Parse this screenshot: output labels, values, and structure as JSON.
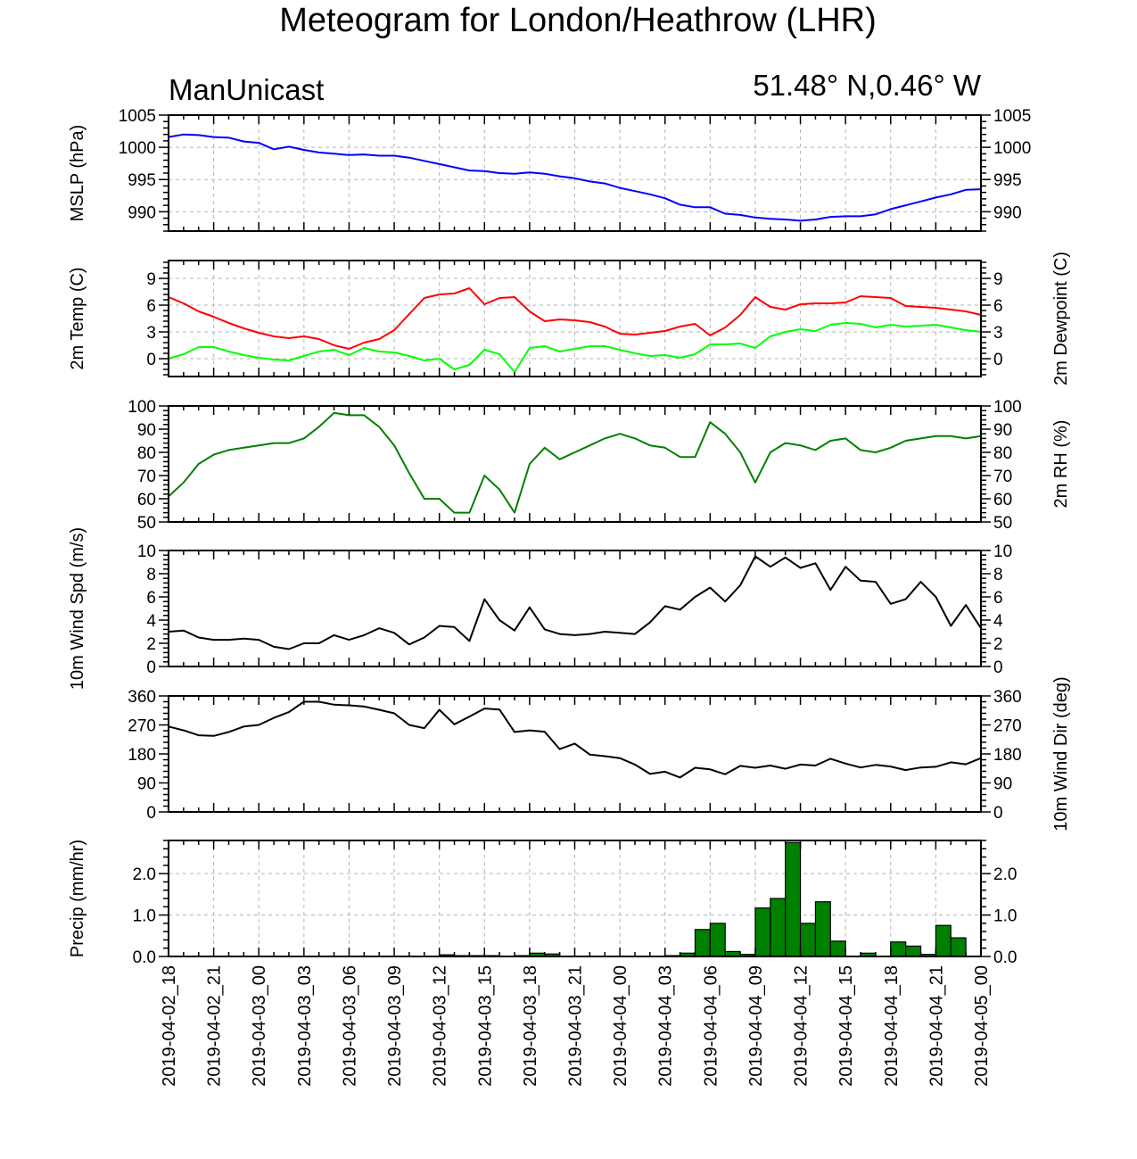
{
  "title": "Meteogram for London/Heathrow (LHR)",
  "subtitle_left": "ManUnicast",
  "subtitle_right": "51.48° N,0.46° W",
  "x_tick_labels": [
    "2019-04-02_18",
    "2019-04-02_21",
    "2019-04-03_00",
    "2019-04-03_03",
    "2019-04-03_06",
    "2019-04-03_09",
    "2019-04-03_12",
    "2019-04-03_15",
    "2019-04-03_18",
    "2019-04-03_21",
    "2019-04-04_00",
    "2019-04-04_03",
    "2019-04-04_06",
    "2019-04-04_09",
    "2019-04-04_12",
    "2019-04-04_15",
    "2019-04-04_18",
    "2019-04-04_21",
    "2019-04-05_00"
  ],
  "colors": {
    "mslp": "#0000ff",
    "temp": "#ff0000",
    "dewpoint": "#00ff00",
    "rh": "#008000",
    "wind": "#000000",
    "precip_fill": "#008000",
    "grid": "#b4b4b4"
  },
  "chart_data": [
    {
      "type": "line",
      "ylabel": "MSLP (hPa)",
      "ylabel_right": "",
      "ylim": [
        987,
        1005
      ],
      "yticks": [
        990,
        995,
        1000,
        1005
      ],
      "ytick_labels": [
        "990",
        "995",
        "1000",
        "1005"
      ],
      "grid": true,
      "series": [
        {
          "values": [
            1001.6,
            1002.0,
            1001.9,
            1001.6,
            1001.5,
            1000.9,
            1000.7,
            999.7,
            1000.1,
            999.6,
            999.2,
            999.0,
            998.8,
            998.9,
            998.7,
            998.7,
            998.4,
            997.9,
            997.4,
            996.9,
            996.4,
            996.3,
            996.0,
            995.9,
            996.1,
            995.9,
            995.5,
            995.2,
            994.7,
            994.4,
            993.7,
            993.2,
            992.7,
            992.1,
            991.1,
            990.7,
            990.7,
            989.7,
            989.5,
            989.1,
            988.9,
            988.8,
            988.6,
            988.8,
            989.2,
            989.3,
            989.3,
            989.6,
            990.4,
            991.0,
            991.6,
            992.2,
            992.7,
            993.4,
            993.5
          ]
        }
      ]
    },
    {
      "type": "line",
      "ylabel": "2m Temp (C)",
      "ylabel_right": "2m Dewpoint (C)",
      "ylim": [
        -2,
        11
      ],
      "yticks": [
        0,
        3,
        6,
        9
      ],
      "ytick_labels": [
        "0",
        "3",
        "6",
        "9"
      ],
      "grid": true,
      "series": [
        {
          "values": [
            6.9,
            6.2,
            5.3,
            4.7,
            4.0,
            3.4,
            2.9,
            2.5,
            2.3,
            2.5,
            2.2,
            1.5,
            1.1,
            1.8,
            2.2,
            3.2,
            5.0,
            6.8,
            7.2,
            7.3,
            7.9,
            6.1,
            6.8,
            6.9,
            5.3,
            4.2,
            4.4,
            4.3,
            4.1,
            3.6,
            2.8,
            2.7,
            2.9,
            3.1,
            3.6,
            3.9,
            2.6,
            3.5,
            4.9,
            6.9,
            5.8,
            5.5,
            6.1,
            6.2,
            6.2,
            6.3,
            7.0,
            6.9,
            6.8,
            5.9,
            5.8,
            5.7,
            5.5,
            5.3,
            4.9
          ]
        },
        {
          "values": [
            0.0,
            0.5,
            1.3,
            1.3,
            0.8,
            0.4,
            0.1,
            -0.1,
            -0.2,
            0.3,
            0.8,
            1.0,
            0.4,
            1.2,
            0.8,
            0.7,
            0.3,
            -0.2,
            0.0,
            -1.2,
            -0.7,
            1.0,
            0.5,
            -1.5,
            1.2,
            1.4,
            0.8,
            1.1,
            1.4,
            1.4,
            1.0,
            0.6,
            0.3,
            0.4,
            0.1,
            0.5,
            1.6,
            1.6,
            1.7,
            1.2,
            2.5,
            3.0,
            3.3,
            3.1,
            3.8,
            4.0,
            3.9,
            3.5,
            3.8,
            3.6,
            3.7,
            3.8,
            3.5,
            3.2,
            3.0
          ]
        }
      ]
    },
    {
      "type": "line",
      "ylabel": "",
      "ylabel_right": "2m RH (%)",
      "ylim": [
        50,
        100
      ],
      "yticks": [
        50,
        60,
        70,
        80,
        90,
        100
      ],
      "ytick_labels": [
        "50",
        "60",
        "70",
        "80",
        "90",
        "100"
      ],
      "grid": false,
      "series": [
        {
          "values": [
            61,
            67,
            75,
            79,
            81,
            82,
            83,
            84,
            84,
            86,
            91,
            97,
            96,
            96,
            91,
            83,
            71,
            60,
            60,
            54,
            54,
            70,
            64,
            54,
            75,
            82,
            77,
            80,
            83,
            86,
            88,
            86,
            83,
            82,
            78,
            78,
            93,
            88,
            80,
            67,
            80,
            84,
            83,
            81,
            85,
            86,
            81,
            80,
            82,
            85,
            86,
            87,
            87,
            86,
            87
          ]
        }
      ]
    },
    {
      "type": "line",
      "ylabel": "10m Wind Spd (m/s)",
      "ylabel_right": "",
      "ylim": [
        0,
        10
      ],
      "yticks": [
        0,
        2,
        4,
        6,
        8,
        10
      ],
      "ytick_labels": [
        "0",
        "2",
        "4",
        "6",
        "8",
        "10"
      ],
      "grid": false,
      "series": [
        {
          "values": [
            3.0,
            3.1,
            2.5,
            2.3,
            2.3,
            2.4,
            2.3,
            1.7,
            1.5,
            2.0,
            2.0,
            2.7,
            2.3,
            2.7,
            3.3,
            2.9,
            1.9,
            2.5,
            3.5,
            3.4,
            2.2,
            5.8,
            4.0,
            3.1,
            5.1,
            3.2,
            2.8,
            2.7,
            2.8,
            3.0,
            2.9,
            2.8,
            3.8,
            5.2,
            4.9,
            6.0,
            6.8,
            5.6,
            7.0,
            9.5,
            8.6,
            9.4,
            8.5,
            8.9,
            6.6,
            8.6,
            7.4,
            7.3,
            5.4,
            5.8,
            7.3,
            6.0,
            3.5,
            5.3,
            3.3
          ]
        }
      ]
    },
    {
      "type": "line",
      "ylabel": "",
      "ylabel_right": "10m Wind Dir (deg)",
      "ylim": [
        0,
        360
      ],
      "yticks": [
        0,
        90,
        180,
        270,
        360
      ],
      "ytick_labels": [
        "0",
        "90",
        "180",
        "270",
        "360"
      ],
      "grid": false,
      "series": [
        {
          "values": [
            265,
            253,
            238,
            236,
            248,
            265,
            270,
            292,
            310,
            342,
            342,
            333,
            331,
            327,
            317,
            306,
            270,
            260,
            317,
            272,
            296,
            321,
            318,
            248,
            253,
            249,
            195,
            212,
            178,
            173,
            167,
            147,
            118,
            125,
            107,
            137,
            132,
            117,
            143,
            137,
            144,
            134,
            147,
            144,
            165,
            150,
            138,
            146,
            141,
            130,
            138,
            140,
            154,
            148,
            167
          ]
        }
      ]
    },
    {
      "type": "bar",
      "ylabel": "Precip (mm/hr)",
      "ylabel_right": "",
      "ylim": [
        0,
        2.8
      ],
      "yticks": [
        0,
        1,
        2
      ],
      "ytick_labels": [
        "0.0",
        "1.0",
        "2.0"
      ],
      "grid": true,
      "values": [
        0,
        0,
        0,
        0,
        0,
        0,
        0,
        0,
        0,
        0,
        0,
        0,
        0,
        0,
        0,
        0,
        0,
        0,
        0.04,
        0.02,
        0.02,
        0.02,
        0,
        0.02,
        0.08,
        0.06,
        0,
        0,
        0,
        0,
        0,
        0,
        0,
        0.02,
        0.08,
        0.65,
        0.8,
        0.12,
        0.05,
        1.17,
        1.4,
        2.75,
        0.8,
        1.32,
        0.37,
        0,
        0.08,
        0,
        0.35,
        0.25,
        0.05,
        0.75,
        0.45,
        0,
        0
      ]
    }
  ]
}
